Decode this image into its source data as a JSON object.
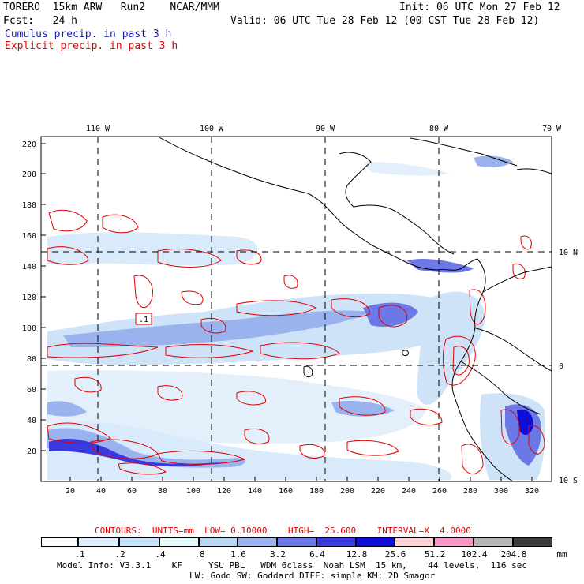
{
  "header": {
    "model": "TORERO  15km ARW   Run2    NCAR/MMM",
    "init": "Init: 06 UTC Mon 27 Feb 12",
    "fcst": "Fcst:   24 h",
    "valid": "Valid: 06 UTC Tue 28 Feb 12 (00 CST Tue 28 Feb 12)",
    "line_cumulus": "Cumulus precip. in past 3 h",
    "line_explicit": "Explicit precip. in past 3 h"
  },
  "axes": {
    "top_lon_labels": [
      "110 W",
      "100 W",
      "90 W",
      "80 W",
      "70 W"
    ],
    "right_lat_labels": [
      "10 N",
      "0",
      "10 S"
    ],
    "y_ticks": [
      "220",
      "200",
      "180",
      "160",
      "140",
      "120",
      "100",
      "80",
      "60",
      "40",
      "20"
    ],
    "x_ticks": [
      "20",
      "40",
      "60",
      "80",
      "100",
      "120",
      "140",
      "160",
      "180",
      "200",
      "220",
      "240",
      "260",
      "280",
      "300",
      "320"
    ]
  },
  "map_annotations": {
    "low_box": ".1"
  },
  "contour_info": {
    "label": "CONTOURS:  UNITS=mm  LOW= 0.10000    HIGH=  25.600    INTERVAL=X  4.0000"
  },
  "colorbar": {
    "labels": [
      ".1",
      ".2",
      ".4",
      ".8",
      "1.6",
      "3.2",
      "6.4",
      "12.8",
      "25.6",
      "51.2",
      "102.4",
      "204.8"
    ],
    "unit": "mm",
    "colors": [
      "#ffffff",
      "#ddeeff",
      "#c6e4fa",
      "#e6fbfb",
      "#b6d6f4",
      "#9ab3ef",
      "#6c78e6",
      "#3a3ae0",
      "#0e0ed8",
      "#fcd2d6",
      "#f596c4",
      "#b5b5b5",
      "#3a3a3a",
      "#cfa3ee"
    ]
  },
  "footer": {
    "line1": "Model Info: V3.3.1    KF     YSU PBL   WDM 6class  Noah LSM  15 km,    44 levels,  116 sec",
    "line2": "LW: Godd SW: Goddard DIFF: simple KM: 2D Smagor"
  }
}
